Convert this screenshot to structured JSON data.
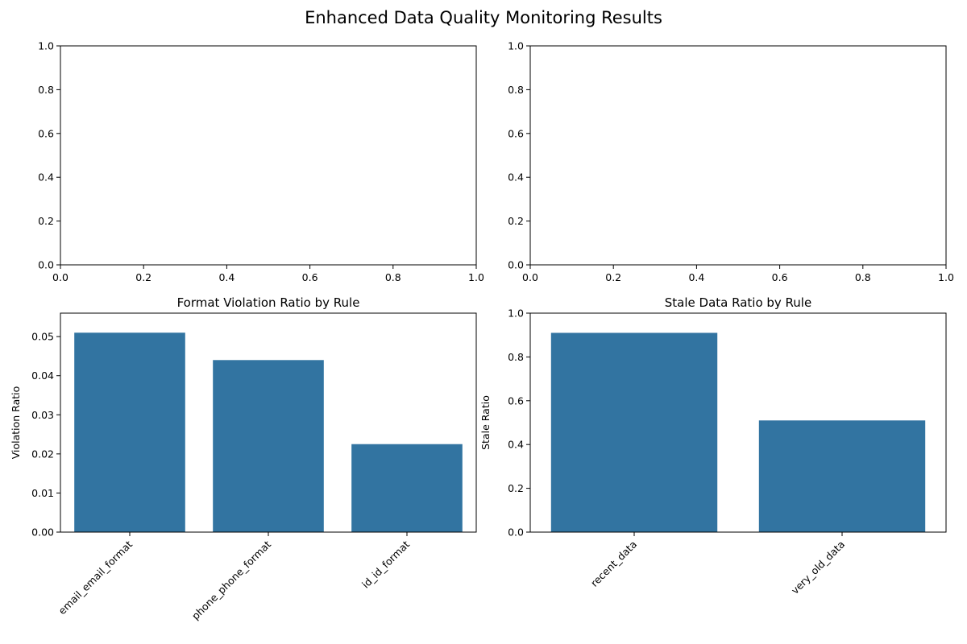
{
  "figure": {
    "title": "Enhanced Data Quality Monitoring Results"
  },
  "colors": {
    "bar": "#3274a1",
    "axis": "#000000"
  },
  "chart_data": [
    {
      "type": "empty",
      "position": "top-left",
      "title": "",
      "xlabel": "",
      "ylabel": "",
      "xlim": [
        0,
        1
      ],
      "ylim": [
        0,
        1
      ],
      "xticks": [
        "0.0",
        "0.2",
        "0.4",
        "0.6",
        "0.8",
        "1.0"
      ],
      "yticks": [
        "0.0",
        "0.2",
        "0.4",
        "0.6",
        "0.8",
        "1.0"
      ],
      "grid": false
    },
    {
      "type": "empty",
      "position": "top-right",
      "title": "",
      "xlabel": "",
      "ylabel": "",
      "xlim": [
        0,
        1
      ],
      "ylim": [
        0,
        1
      ],
      "xticks": [
        "0.0",
        "0.2",
        "0.4",
        "0.6",
        "0.8",
        "1.0"
      ],
      "yticks": [
        "0.0",
        "0.2",
        "0.4",
        "0.6",
        "0.8",
        "1.0"
      ],
      "grid": false
    },
    {
      "type": "bar",
      "position": "bottom-left",
      "title": "Format Violation Ratio by Rule",
      "xlabel": "",
      "ylabel": "Violation Ratio",
      "categories": [
        "email_email_format",
        "phone_phone_format",
        "id_id_format"
      ],
      "values": [
        0.051,
        0.044,
        0.0225
      ],
      "ylim": [
        0,
        0.056
      ],
      "yticks": [
        "0.00",
        "0.01",
        "0.02",
        "0.03",
        "0.04",
        "0.05"
      ],
      "grid": false
    },
    {
      "type": "bar",
      "position": "bottom-right",
      "title": "Stale Data Ratio by Rule",
      "xlabel": "",
      "ylabel": "Stale Ratio",
      "categories": [
        "recent_data",
        "very_old_data"
      ],
      "values": [
        0.91,
        0.51
      ],
      "ylim": [
        0,
        1.0
      ],
      "yticks": [
        "0.0",
        "0.2",
        "0.4",
        "0.6",
        "0.8",
        "1.0"
      ],
      "grid": false
    }
  ]
}
